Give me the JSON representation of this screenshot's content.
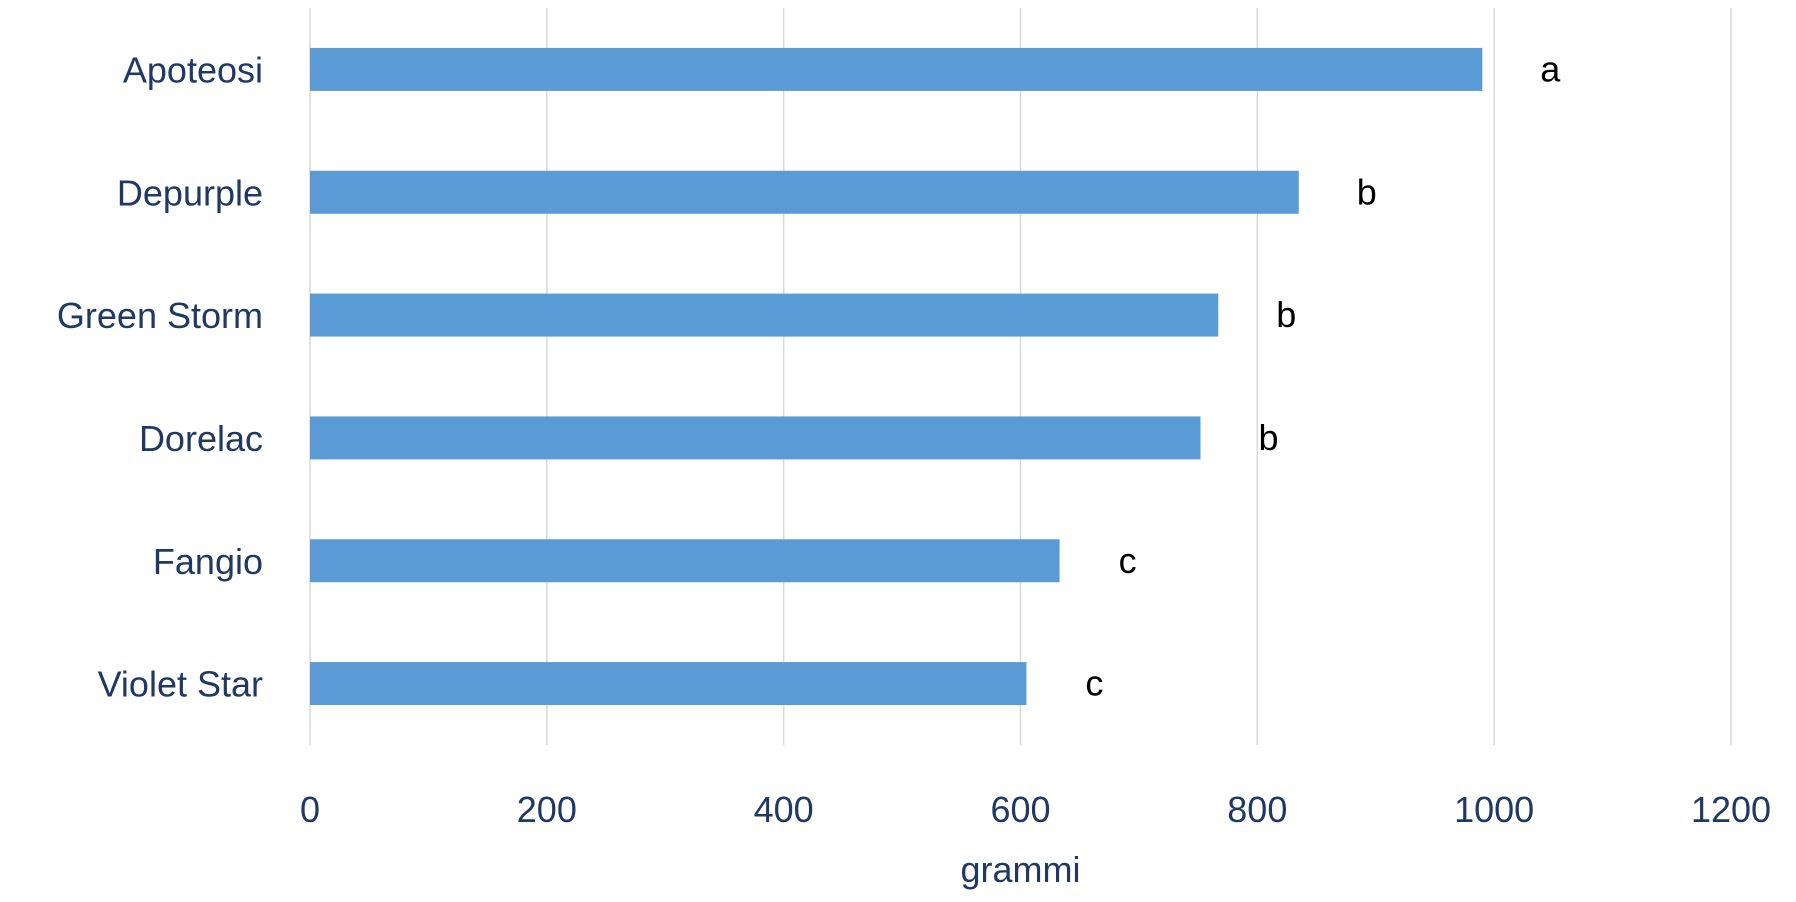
{
  "chart_data": {
    "type": "bar",
    "orientation": "horizontal",
    "categories": [
      "Apoteosi",
      "Depurple",
      "Green Storm",
      "Dorelac",
      "Fangio",
      "Violet Star"
    ],
    "values": [
      990,
      835,
      767,
      752,
      633,
      605
    ],
    "annotations": [
      "a",
      "b",
      "b",
      "b",
      "c",
      "c"
    ],
    "xlabel": "grammi",
    "ylabel": "",
    "title": "",
    "xlim": [
      0,
      1200
    ],
    "xticks": [
      "0",
      "200",
      "400",
      "600",
      "800",
      "1000",
      "1200"
    ],
    "grid": "vertical",
    "legend": "none",
    "bar_color": "#5b9bd5",
    "text_color": "#1f3864"
  }
}
